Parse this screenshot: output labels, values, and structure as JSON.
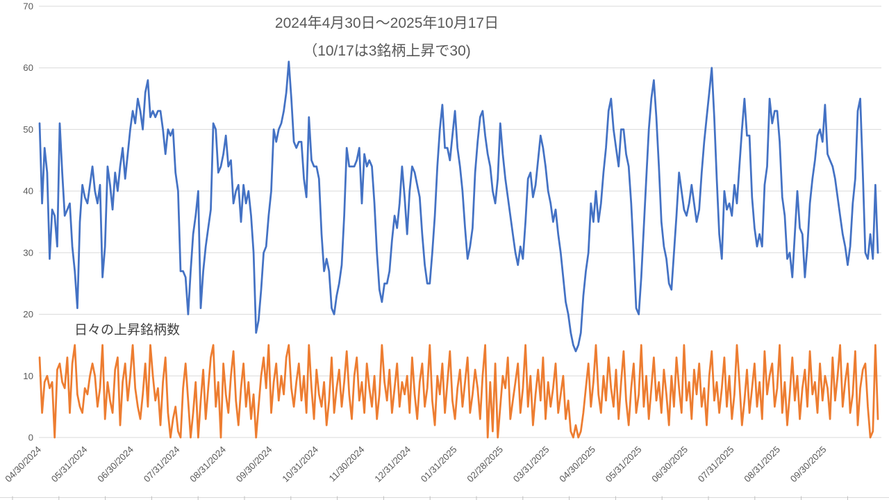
{
  "chart_data": {
    "type": "line",
    "title": "2024年4月30日～2025年10月17日",
    "subtitle": "（10/17は3銘柄上昇で30)",
    "annotation": "日々の上昇銘柄数",
    "x_start": "04/30/2024",
    "x_end": "10/17/2025",
    "ylim": [
      0,
      70
    ],
    "y_ticks": [
      0,
      10,
      20,
      30,
      40,
      50,
      60,
      70
    ],
    "x_tick_labels": [
      "04/30/2024",
      "05/31/2024",
      "06/30/2024",
      "07/31/2024",
      "08/31/2024",
      "09/30/2024",
      "10/31/2024",
      "11/30/2024",
      "12/31/2024",
      "01/31/2025",
      "02/28/2025",
      "03/31/2025",
      "04/30/2025",
      "05/31/2025",
      "06/30/2025",
      "07/31/2025",
      "08/31/2025",
      "09/30/2025"
    ],
    "grid": "horizontal",
    "legend": "none",
    "gridline_color": "#d9d9d9",
    "axis_text_color": "#595959",
    "n_points": 334,
    "series": [
      {
        "name": "series-blue",
        "color": "#4472C4",
        "values": [
          51,
          38,
          47,
          43,
          29,
          37,
          36,
          31,
          51,
          43,
          36,
          37,
          38,
          31,
          27,
          21,
          35,
          41,
          39,
          38,
          41,
          44,
          40,
          38,
          41,
          26,
          31,
          44,
          41,
          37,
          43,
          40,
          44,
          47,
          42,
          46,
          50,
          53,
          51,
          55,
          53,
          50,
          56,
          58,
          52,
          53,
          52,
          53,
          53,
          50,
          46,
          50,
          49,
          50,
          43,
          40,
          27,
          27,
          26,
          20,
          27,
          33,
          36,
          40,
          21,
          27,
          31,
          34,
          37,
          51,
          50,
          43,
          44,
          46,
          49,
          44,
          45,
          38,
          40,
          41,
          35,
          41,
          38,
          40,
          36,
          30,
          17,
          19,
          24,
          30,
          31,
          36,
          40,
          50,
          48,
          50,
          51,
          53,
          56,
          61,
          55,
          48,
          47,
          48,
          48,
          42,
          39,
          52,
          45,
          44,
          44,
          42,
          33,
          27,
          29,
          27,
          21,
          20,
          23,
          25,
          28,
          36,
          47,
          44,
          44,
          44,
          45,
          47,
          38,
          46,
          44,
          45,
          44,
          38,
          30,
          24,
          22,
          25,
          25,
          27,
          32,
          36,
          34,
          38,
          44,
          39,
          33,
          40,
          44,
          43,
          41,
          39,
          33,
          28,
          25,
          25,
          30,
          36,
          44,
          50,
          54,
          47,
          47,
          45,
          49,
          53,
          47,
          44,
          40,
          34,
          29,
          31,
          34,
          43,
          48,
          52,
          53,
          49,
          46,
          44,
          40,
          38,
          42,
          51,
          46,
          42,
          39,
          36,
          33,
          30,
          28,
          31,
          29,
          35,
          42,
          43,
          39,
          41,
          45,
          49,
          47,
          44,
          40,
          38,
          35,
          37,
          33,
          30,
          26,
          22,
          20,
          17,
          15,
          14,
          15,
          17,
          23,
          27,
          30,
          38,
          35,
          40,
          35,
          38,
          43,
          47,
          53,
          55,
          50,
          47,
          44,
          50,
          50,
          46,
          44,
          38,
          30,
          21,
          20,
          26,
          34,
          42,
          50,
          55,
          58,
          52,
          44,
          35,
          31,
          29,
          25,
          24,
          30,
          36,
          43,
          40,
          37,
          36,
          38,
          41,
          38,
          35,
          37,
          43,
          48,
          52,
          56,
          60,
          52,
          42,
          33,
          29,
          40,
          37,
          38,
          36,
          41,
          38,
          44,
          50,
          55,
          49,
          49,
          39,
          34,
          31,
          33,
          31,
          41,
          44,
          55,
          51,
          53,
          53,
          48,
          39,
          36,
          29,
          30,
          26,
          33,
          40,
          34,
          33,
          26,
          31,
          38,
          42,
          45,
          49,
          50,
          48,
          54,
          46,
          45,
          44,
          42,
          39,
          36,
          33,
          31,
          28,
          31,
          38,
          42,
          53,
          55,
          43,
          30,
          29,
          33,
          29,
          41,
          30
        ]
      },
      {
        "name": "series-orange",
        "color": "#ED7D31",
        "values": [
          13,
          4,
          9,
          10,
          8,
          9,
          0,
          11,
          12,
          9,
          8,
          13,
          4,
          12,
          15,
          7,
          5,
          4,
          8,
          7,
          10,
          12,
          10,
          5,
          8,
          15,
          3,
          9,
          6,
          4,
          11,
          13,
          2,
          9,
          12,
          6,
          10,
          15,
          8,
          5,
          3,
          7,
          12,
          5,
          15,
          10,
          6,
          8,
          2,
          9,
          13,
          4,
          0,
          3,
          5,
          1,
          0,
          8,
          12,
          6,
          0,
          4,
          9,
          0,
          6,
          11,
          3,
          8,
          13,
          15,
          5,
          9,
          0,
          12,
          7,
          4,
          10,
          14,
          6,
          2,
          8,
          12,
          5,
          9,
          3,
          7,
          0,
          5,
          10,
          13,
          8,
          15,
          4,
          9,
          12,
          6,
          10,
          7,
          13,
          15,
          8,
          5,
          9,
          12,
          6,
          10,
          4,
          15,
          8,
          3,
          11,
          7,
          5,
          9,
          2,
          6,
          13,
          4,
          8,
          11,
          5,
          9,
          14,
          7,
          3,
          10,
          13,
          6,
          9,
          4,
          12,
          8,
          5,
          10,
          3,
          7,
          15,
          9,
          6,
          11,
          4,
          8,
          12,
          5,
          9,
          7,
          10,
          4,
          13,
          7,
          3,
          9,
          12,
          5,
          8,
          15,
          6,
          2,
          10,
          7,
          12,
          4,
          9,
          14,
          6,
          3,
          8,
          11,
          5,
          9,
          13,
          4,
          7,
          11,
          8,
          3,
          10,
          15,
          0,
          9,
          1,
          12,
          0,
          5,
          10,
          8,
          13,
          3,
          6,
          9,
          12,
          4,
          8,
          15,
          5,
          10,
          2,
          7,
          11,
          6,
          13,
          3,
          9,
          5,
          8,
          12,
          4,
          7,
          10,
          3,
          6,
          1,
          0,
          2,
          0,
          1,
          4,
          8,
          12,
          5,
          9,
          15,
          7,
          4,
          10,
          6,
          13,
          8,
          5,
          11,
          3,
          9,
          14,
          6,
          2,
          8,
          12,
          4,
          7,
          15,
          5,
          10,
          3,
          8,
          13,
          6,
          9,
          4,
          11,
          7,
          2,
          10,
          5,
          13,
          8,
          4,
          15,
          6,
          9,
          3,
          11,
          7,
          12,
          5,
          8,
          2,
          10,
          14,
          6,
          9,
          4,
          8,
          13,
          5,
          10,
          3,
          7,
          15,
          9,
          2,
          6,
          11,
          4,
          8,
          12,
          5,
          9,
          3,
          14,
          7,
          10,
          12,
          5,
          8,
          15,
          4,
          9,
          2,
          7,
          13,
          6,
          10,
          3,
          8,
          11,
          5,
          14,
          7,
          9,
          4,
          12,
          6,
          10,
          8,
          3,
          13,
          6,
          10,
          15,
          5,
          9,
          12,
          4,
          7,
          14,
          2,
          8,
          11,
          12,
          5,
          0,
          1,
          15,
          3
        ]
      }
    ]
  }
}
